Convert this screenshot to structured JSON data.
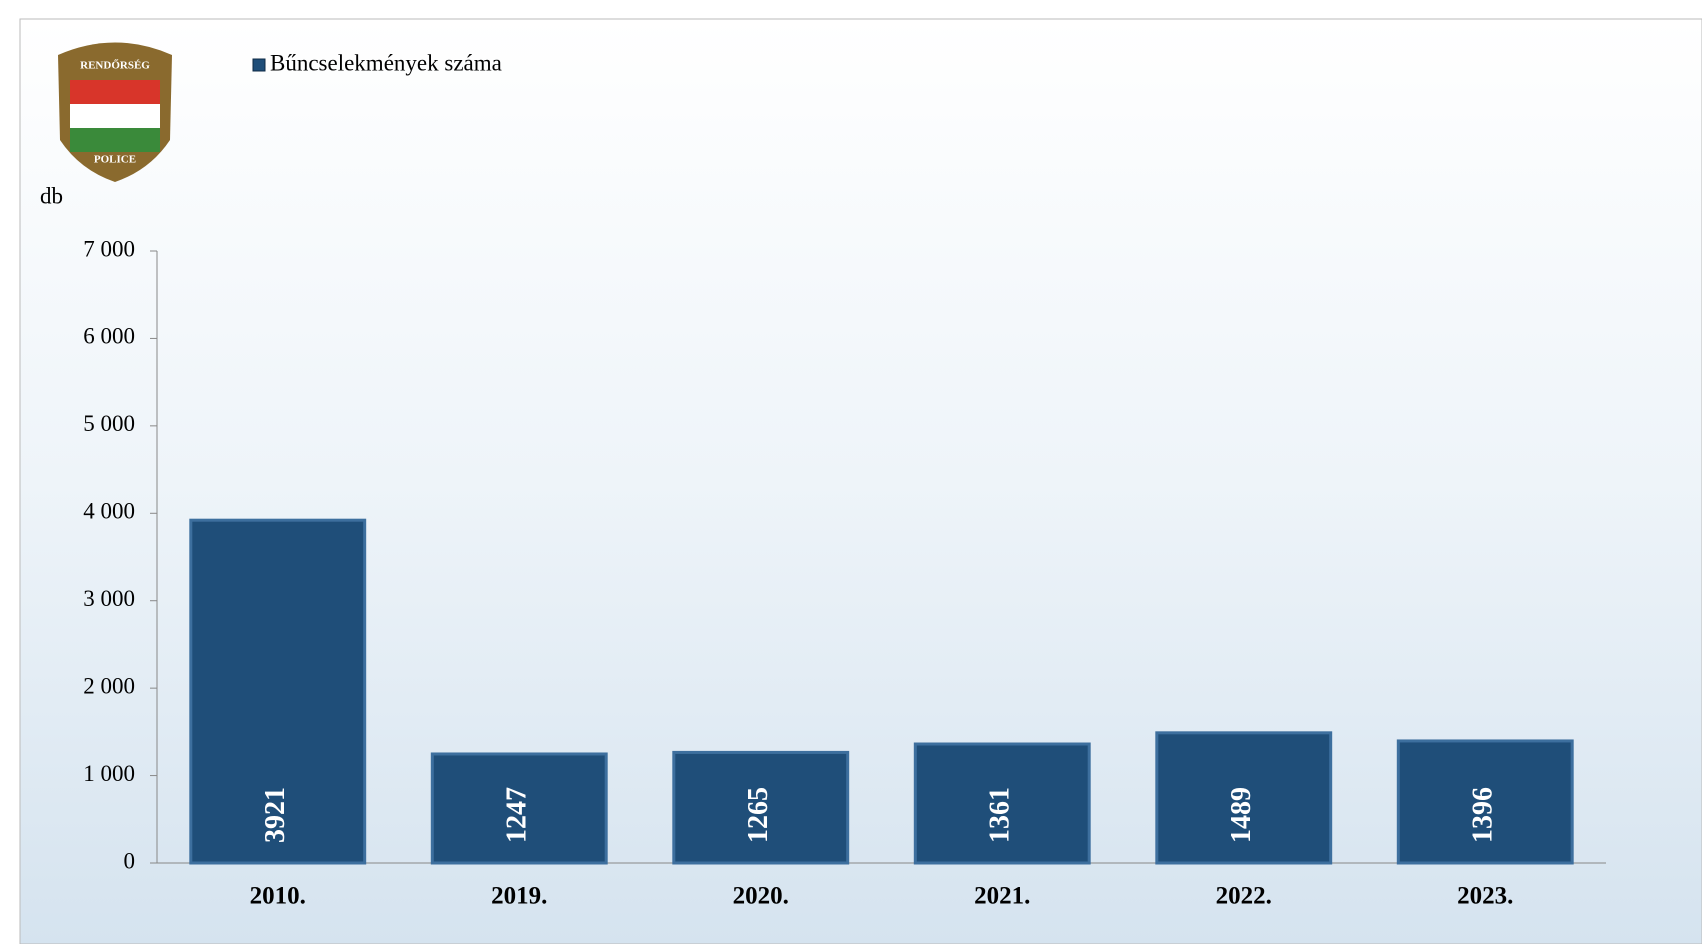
{
  "chart_data": {
    "type": "bar",
    "annotations": [
      "RENDŐRSÉG",
      "POLICE"
    ],
    "legend": "Bűncselekmények száma",
    "y_label": "db",
    "categories": [
      "2010.",
      "2019.",
      "2020.",
      "2021.",
      "2022.",
      "2023."
    ],
    "values": [
      3921,
      1247,
      1265,
      1361,
      1489,
      1396
    ],
    "color": "#1f4e79",
    "ylim": [
      0,
      7000
    ],
    "yticks": [
      0,
      {
        "value": 1000,
        "label": "1 000"
      },
      {
        "value": 2000,
        "label": "2 000"
      },
      {
        "value": 3000,
        "label": "3 000"
      },
      {
        "value": 4000,
        "label": "4 000"
      },
      {
        "value": 5000,
        "label": "5 000"
      },
      {
        "value": 6000,
        "label": "6 000"
      },
      {
        "value": 7000,
        "label": "7 000"
      }
    ]
  }
}
